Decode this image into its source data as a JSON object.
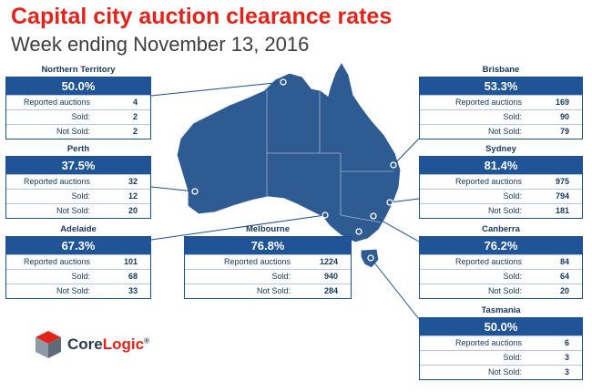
{
  "header": {
    "title": "Capital city auction clearance rates",
    "subtitle": "Week ending November 13, 2016"
  },
  "row_labels": {
    "reported": "Reported auctions",
    "sold": "Sold:",
    "not_sold": "Not Sold:"
  },
  "cities": {
    "northern_territory": {
      "name": "Northern Territory",
      "rate": "50.0%",
      "reported": "4",
      "sold": "2",
      "not_sold": "2"
    },
    "perth": {
      "name": "Perth",
      "rate": "37.5%",
      "reported": "32",
      "sold": "12",
      "not_sold": "20"
    },
    "adelaide": {
      "name": "Adelaide",
      "rate": "67.3%",
      "reported": "101",
      "sold": "68",
      "not_sold": "33"
    },
    "melbourne": {
      "name": "Melbourne",
      "rate": "76.8%",
      "reported": "1224",
      "sold": "940",
      "not_sold": "284"
    },
    "brisbane": {
      "name": "Brisbane",
      "rate": "53.3%",
      "reported": "169",
      "sold": "90",
      "not_sold": "79"
    },
    "sydney": {
      "name": "Sydney",
      "rate": "81.4%",
      "reported": "975",
      "sold": "794",
      "not_sold": "181"
    },
    "canberra": {
      "name": "Canberra",
      "rate": "76.2%",
      "reported": "84",
      "sold": "64",
      "not_sold": "20"
    },
    "tasmania": {
      "name": "Tasmania",
      "rate": "50.0%",
      "reported": "6",
      "sold": "3",
      "not_sold": "3"
    }
  },
  "logo": {
    "core": "Core",
    "logic": "Logic",
    "mark": "®"
  },
  "colors": {
    "title_red": "#e2231a",
    "map_blue": "#2f5b93",
    "rate_bar_blue": "#1f5597",
    "text_navy": "#17375e"
  }
}
